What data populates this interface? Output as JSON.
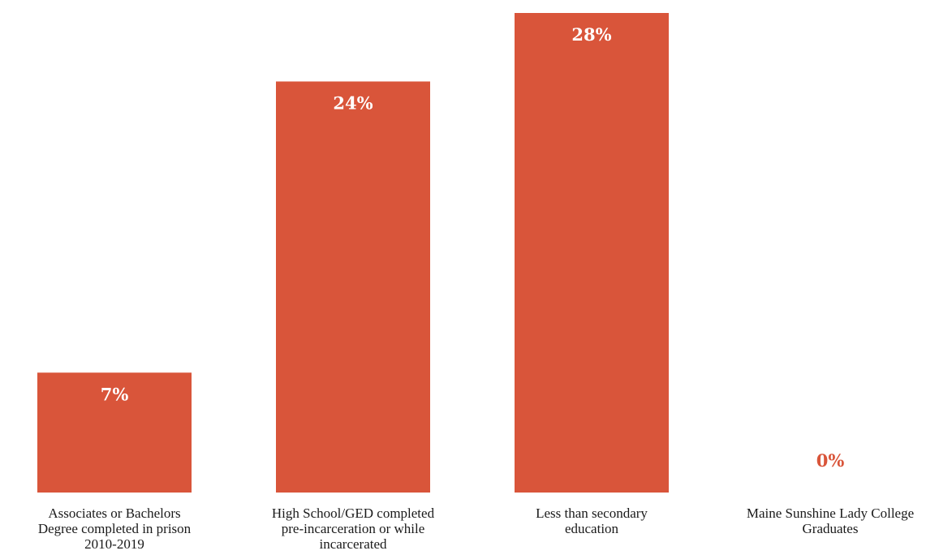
{
  "chart_data": {
    "type": "bar",
    "title": "",
    "xlabel": "",
    "ylabel": "",
    "ylim": [
      0,
      28
    ],
    "grid": false,
    "categories": [
      "Associates or Bachelors Degree completed in prison 2010-2019",
      "High School/GED completed pre-incarceration or while incarcerated",
      "Less than secondary education",
      "Maine Sunshine Lady College Graduates"
    ],
    "category_lines": [
      [
        "Associates or Bachelors",
        "Degree completed in prison",
        "2010-2019"
      ],
      [
        "High School/GED completed",
        "pre-incarceration or while",
        "incarcerated"
      ],
      [
        "Less than secondary",
        "education"
      ],
      [
        "Maine Sunshine Lady College",
        "Graduates"
      ]
    ],
    "values": [
      7,
      24,
      28,
      0
    ],
    "data_labels": [
      "7%",
      "24%",
      "28%",
      "0%"
    ],
    "unit": "%"
  },
  "colors": {
    "bar": "#d9553a",
    "label_inside": "#ffffff",
    "label_outside": "#d9553a"
  }
}
